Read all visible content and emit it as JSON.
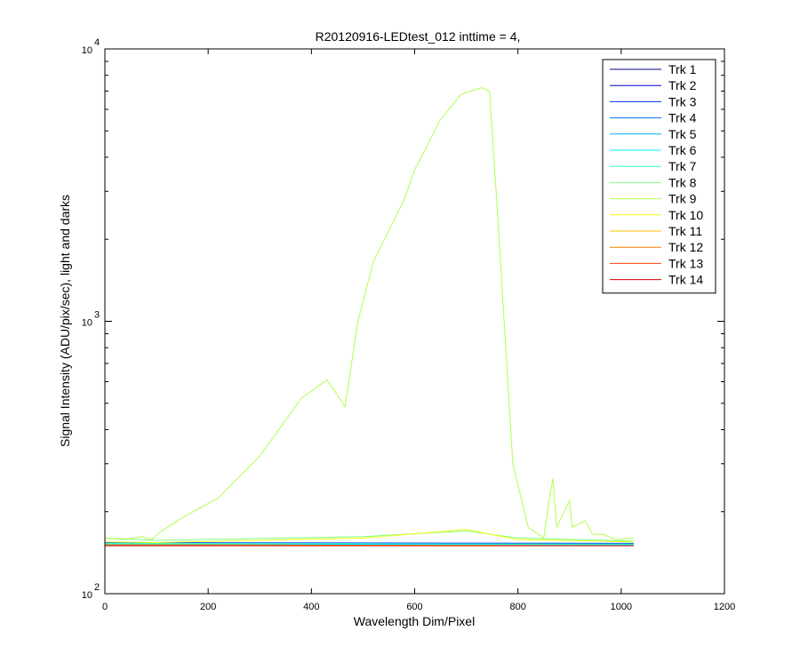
{
  "chart_data": {
    "type": "line",
    "title": "R20120916-LEDtest_012 inttime = 4,",
    "xlabel": "Wavelength Dim/Pixel",
    "ylabel": "Signal Intensity (ADU/pix/sec), light and darks",
    "xlim": [
      0,
      1200
    ],
    "ylim": [
      100,
      10000
    ],
    "yscale": "log",
    "x_ticks": [
      "0",
      "200",
      "400",
      "600",
      "800",
      "1000",
      "1200"
    ],
    "y_ticks": [
      {
        "base": "10",
        "exp": "2",
        "value": 100
      },
      {
        "base": "10",
        "exp": "3",
        "value": 1000
      },
      {
        "base": "10",
        "exp": "4",
        "value": 10000
      }
    ],
    "grid": false,
    "legend_position": "top-right",
    "series": [
      {
        "name": "Trk 1",
        "color": "#00008f",
        "points": [
          [
            0,
            153
          ],
          [
            1024,
            152
          ]
        ]
      },
      {
        "name": "Trk 2",
        "color": "#0000d0",
        "points": [
          [
            0,
            152
          ],
          [
            1024,
            151
          ]
        ]
      },
      {
        "name": "Trk 3",
        "color": "#0030ff",
        "points": [
          [
            0,
            154
          ],
          [
            1024,
            153
          ]
        ]
      },
      {
        "name": "Trk 4",
        "color": "#0070ff",
        "points": [
          [
            0,
            152
          ],
          [
            1024,
            151
          ]
        ]
      },
      {
        "name": "Trk 5",
        "color": "#00b0ff",
        "points": [
          [
            0,
            153
          ],
          [
            1024,
            152
          ]
        ]
      },
      {
        "name": "Trk 6",
        "color": "#00f0ff",
        "points": [
          [
            0,
            152
          ],
          [
            1024,
            151
          ]
        ]
      },
      {
        "name": "Trk 7",
        "color": "#40ffbf",
        "points": [
          [
            0,
            153
          ],
          [
            1024,
            152
          ]
        ]
      },
      {
        "name": "Trk 8",
        "color": "#80ff80",
        "points": [
          [
            0,
            160
          ],
          [
            100,
            157
          ],
          [
            500,
            162
          ],
          [
            700,
            170
          ],
          [
            800,
            160
          ],
          [
            1024,
            156
          ]
        ]
      },
      {
        "name": "Trk 9",
        "color": "#b0ff50",
        "points": [
          [
            0,
            160
          ],
          [
            40,
            158
          ],
          [
            70,
            162
          ],
          [
            90,
            158
          ],
          [
            110,
            170
          ],
          [
            150,
            190
          ],
          [
            220,
            225
          ],
          [
            300,
            320
          ],
          [
            380,
            520
          ],
          [
            430,
            610
          ],
          [
            455,
            520
          ],
          [
            465,
            485
          ],
          [
            490,
            1000
          ],
          [
            520,
            1650
          ],
          [
            580,
            2800
          ],
          [
            600,
            3600
          ],
          [
            650,
            5500
          ],
          [
            690,
            6800
          ],
          [
            730,
            7200
          ],
          [
            745,
            7000
          ],
          [
            760,
            2600
          ],
          [
            790,
            300
          ],
          [
            820,
            175
          ],
          [
            850,
            160
          ],
          [
            862,
            230
          ],
          [
            868,
            265
          ],
          [
            875,
            175
          ],
          [
            900,
            220
          ],
          [
            905,
            175
          ],
          [
            930,
            185
          ],
          [
            945,
            165
          ],
          [
            965,
            165
          ],
          [
            990,
            158
          ],
          [
            1024,
            160
          ]
        ]
      },
      {
        "name": "Trk 10",
        "color": "#f0ff10",
        "points": [
          [
            0,
            155
          ],
          [
            100,
            154
          ],
          [
            500,
            160
          ],
          [
            700,
            172
          ],
          [
            800,
            158
          ],
          [
            1024,
            155
          ]
        ]
      },
      {
        "name": "Trk 11",
        "color": "#ffc000",
        "points": [
          [
            0,
            151
          ],
          [
            1024,
            150
          ]
        ]
      },
      {
        "name": "Trk 12",
        "color": "#ff8000",
        "points": [
          [
            0,
            151
          ],
          [
            1024,
            150
          ]
        ]
      },
      {
        "name": "Trk 13",
        "color": "#ff4000",
        "points": [
          [
            0,
            150
          ],
          [
            1024,
            150
          ]
        ]
      },
      {
        "name": "Trk 14",
        "color": "#d00000",
        "points": [
          [
            0,
            150
          ],
          [
            1024,
            150
          ]
        ]
      }
    ]
  }
}
